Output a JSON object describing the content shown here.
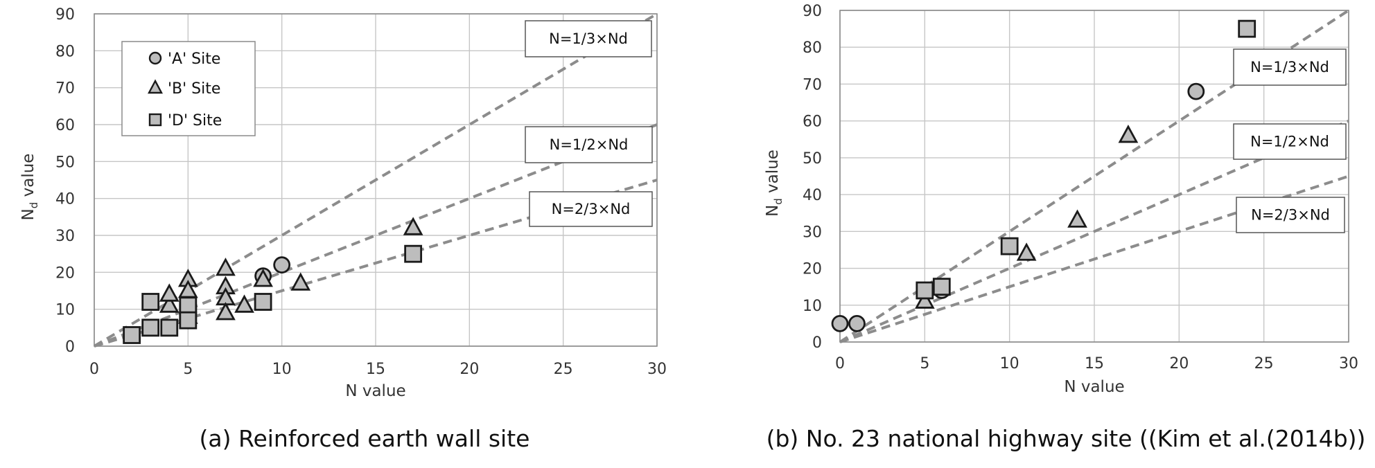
{
  "chart_data": [
    {
      "type": "scatter",
      "caption": "(a) Reinforced earth wall site",
      "xlabel": "N value",
      "ylabel_main": "N",
      "ylabel_sub": "d",
      "ylabel_rest": " value",
      "xlim": [
        0,
        30
      ],
      "ylim": [
        0,
        90
      ],
      "xticks": [
        0,
        5,
        10,
        15,
        20,
        25,
        30
      ],
      "yticks": [
        0,
        10,
        20,
        30,
        40,
        50,
        60,
        70,
        80,
        90
      ],
      "grid": true,
      "legend_position": "top-left",
      "series": [
        {
          "name": "'A' Site",
          "marker": "circle",
          "x": [
            9,
            10
          ],
          "y": [
            19,
            22
          ]
        },
        {
          "name": "'B' Site",
          "marker": "triangle",
          "x": [
            4,
            4,
            5,
            5,
            5,
            7,
            7,
            7,
            7,
            8,
            9,
            11,
            17
          ],
          "y": [
            11,
            14,
            18,
            15,
            8,
            21,
            16,
            13,
            9,
            11,
            18,
            17,
            32
          ]
        },
        {
          "name": "'D' Site",
          "marker": "square",
          "x": [
            2,
            3,
            3,
            4,
            5,
            5,
            5,
            9,
            17
          ],
          "y": [
            3,
            5,
            12,
            5,
            9,
            11,
            7,
            12,
            25
          ]
        }
      ],
      "lines": [
        {
          "label": "N=1/3×Nd",
          "slope": 3
        },
        {
          "label": "N=1/2×Nd",
          "slope": 2
        },
        {
          "label": "N=2/3×Nd",
          "slope": 1.5
        }
      ]
    },
    {
      "type": "scatter",
      "caption": "(b) No. 23 national highway site ((Kim et al.(2014b))",
      "xlabel": "N value",
      "ylabel_main": "N",
      "ylabel_sub": "d",
      "ylabel_rest": " value",
      "xlim": [
        0,
        30
      ],
      "ylim": [
        0,
        90
      ],
      "xticks": [
        0,
        5,
        10,
        15,
        20,
        25,
        30
      ],
      "yticks": [
        0,
        10,
        20,
        30,
        40,
        50,
        60,
        70,
        80,
        90
      ],
      "grid": true,
      "series": [
        {
          "name": "'A' Site",
          "marker": "circle",
          "x": [
            0,
            1,
            6,
            21
          ],
          "y": [
            5,
            5,
            14,
            68
          ]
        },
        {
          "name": "'B' Site",
          "marker": "triangle",
          "x": [
            5,
            11,
            14,
            17
          ],
          "y": [
            11,
            24,
            33,
            56
          ]
        },
        {
          "name": "'D' Site",
          "marker": "square",
          "x": [
            5,
            6,
            10,
            24
          ],
          "y": [
            14,
            15,
            26,
            85
          ]
        }
      ],
      "lines": [
        {
          "label": "N=1/3×Nd",
          "slope": 3
        },
        {
          "label": "N=1/2×Nd",
          "slope": 2
        },
        {
          "label": "N=2/3×Nd",
          "slope": 1.5
        }
      ]
    }
  ]
}
